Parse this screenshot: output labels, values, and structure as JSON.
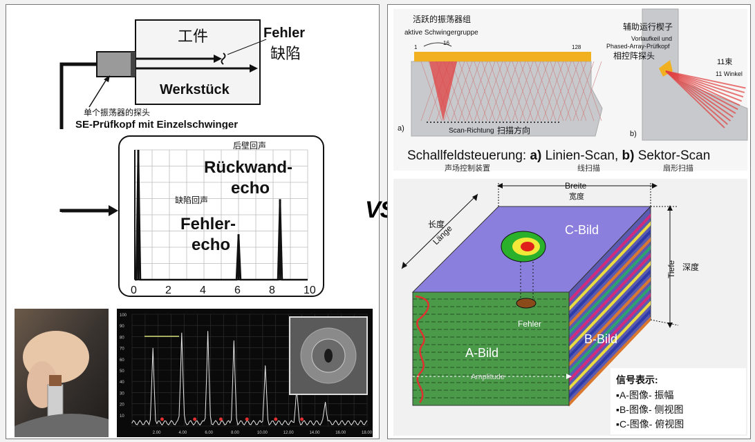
{
  "separator": "VS",
  "se_probe": {
    "workpiece_cn": "工件",
    "defect_de": "Fehler",
    "defect_cn": "缺陷",
    "workpiece_de": "Werkstück",
    "probe_cn": "单个振荡器的探头",
    "probe_de": "SE-Prüfkopf mit Einzelschwinger"
  },
  "ascan": {
    "backwall_cn": "后壁回声",
    "backwall_de_1": "Rückwand-",
    "backwall_de_2": "echo",
    "defect_echo_cn": "缺陷回声",
    "defect_echo_de_1": "Fehler-",
    "defect_echo_de_2": "echo",
    "ticks": [
      "0",
      "2",
      "4",
      "6",
      "8",
      "10"
    ],
    "peaks": [
      {
        "x": 0.2,
        "h": 1.0
      },
      {
        "x": 6.0,
        "h": 0.35
      },
      {
        "x": 8.4,
        "h": 0.62
      }
    ]
  },
  "photo_scan": {
    "ticks": [
      "2.00",
      "4.00",
      "6.00",
      "8.00",
      "10.00",
      "12.00",
      "14.00",
      "16.00",
      "18.00"
    ],
    "yticks": [
      "100",
      "90",
      "80",
      "70",
      "60",
      "50",
      "40",
      "30",
      "20",
      "10"
    ]
  },
  "phased_array": {
    "active_group_cn": "活跃的振荡器组",
    "active_group_de": "aktive Schwingergruppe",
    "n16": "16",
    "n1": "1",
    "n128": "128",
    "label_a": "a)",
    "scan_dir_de": "Scan-Richtung",
    "scan_dir_cn": "扫描方向",
    "wedge_cn": "辅助运行楔子",
    "wedge_de_1": "Vorlaufkeil und",
    "wedge_de_2": "Phased-Array-Prüfkopf",
    "probe_cn": "相控阵探头",
    "beams_cn": "11束",
    "beams_de": "11 Winkel",
    "label_b": "b)",
    "caption_1": "Schallfeldsteuerung: ",
    "caption_a": "a)",
    "caption_2": " Linien-Scan, ",
    "caption_b": "b)",
    "caption_3": " Sektor-Scan",
    "sub_cn_1": "声场控制装置",
    "sub_cn_2": "线扫描",
    "sub_cn_3": "扇形扫描"
  },
  "cube": {
    "breite": "Breite",
    "breite_cn": "宽度",
    "laenge_cn": "长度",
    "laenge": "Länge",
    "tiefe": "Tiefe",
    "tiefe_cn": "深度",
    "c_bild": "C-Bild",
    "b_bild": "B-Bild",
    "a_bild": "A-Bild",
    "fehler": "Fehler",
    "amplitude": "Amplitude"
  },
  "legend": {
    "title": "信号表示:",
    "items": [
      "▪A-图像- 振幅",
      "▪B-图像- 侧视图",
      "▪C-图像- 俯视图"
    ]
  },
  "colors": {
    "cube_top": "#8a7fdc",
    "cube_front": "#4a9a4a",
    "stripe_colors": [
      "#d62a7a",
      "#f2e43a",
      "#2a3aa8",
      "#e07a2a",
      "#2aa86a"
    ],
    "heat_red": "#e0201a",
    "heat_yellow": "#f2e83a",
    "heat_green": "#2ab02a",
    "ascan_line": "#111111",
    "transducer": "#f0b020",
    "beam_red": "#e24040"
  }
}
